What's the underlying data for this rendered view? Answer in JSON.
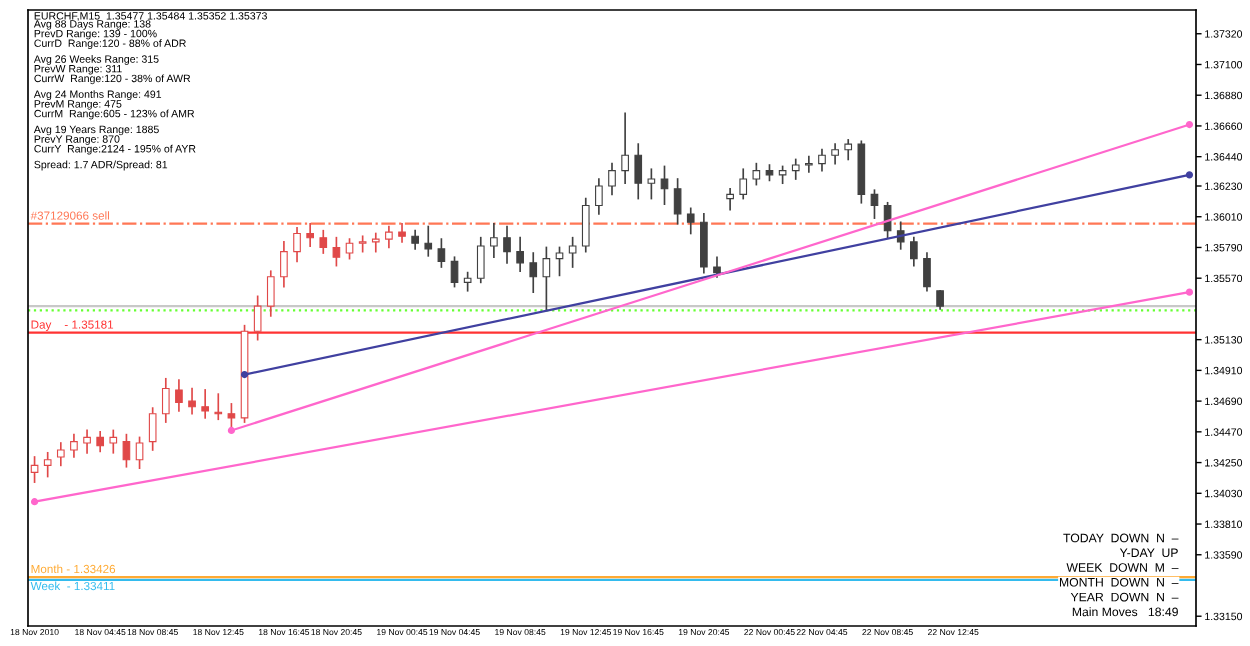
{
  "chart_data": {
    "type": "candlestick",
    "title": "EURCHF,M15  1.35477 1.35484 1.35352 1.35373",
    "categories": [
      "18 Nov 2010",
      null,
      null,
      null,
      null,
      "18 Nov 04:45",
      null,
      null,
      null,
      "18 Nov 08:45",
      null,
      null,
      null,
      null,
      "18 Nov 12:45",
      null,
      null,
      null,
      null,
      "18 Nov 16:45",
      null,
      null,
      null,
      "18 Nov 20:45",
      null,
      null,
      null,
      null,
      "19 Nov 00:45",
      null,
      null,
      null,
      "19 Nov 04:45",
      null,
      null,
      null,
      null,
      "19 Nov 08:45",
      null,
      null,
      null,
      null,
      "19 Nov 12:45",
      null,
      null,
      null,
      "19 Nov 16:45",
      null,
      null,
      null,
      null,
      "19 Nov 20:45",
      null,
      null,
      null,
      null,
      "22 Nov 00:45",
      null,
      null,
      null,
      "22 Nov 04:45",
      null,
      null,
      null,
      null,
      "22 Nov 08:45",
      null,
      null,
      null,
      null,
      "22 Nov 12:45",
      null,
      null,
      null,
      null,
      null,
      null,
      null,
      null,
      null,
      null,
      null,
      null,
      null,
      null,
      null,
      null,
      null,
      null
    ],
    "ylim": [
      1.3308,
      1.3749
    ],
    "yticks": [
      {
        "value": 1.3732,
        "label": "1.37320"
      },
      {
        "value": 1.371,
        "label": "1.37100"
      },
      {
        "value": 1.3688,
        "label": "1.36880"
      },
      {
        "value": 1.3666,
        "label": "1.36660"
      },
      {
        "value": 1.3644,
        "label": "1.36440"
      },
      {
        "value": 1.3623,
        "label": "1.36230"
      },
      {
        "value": 1.3601,
        "label": "1.36010"
      },
      {
        "value": 1.3579,
        "label": "1.35790"
      },
      {
        "value": 1.3557,
        "label": "1.35570"
      },
      {
        "value": 1.3513,
        "label": "1.35130"
      },
      {
        "value": 1.3491,
        "label": "1.34910"
      },
      {
        "value": 1.3469,
        "label": "1.34690"
      },
      {
        "value": 1.3447,
        "label": "1.34470"
      },
      {
        "value": 1.3425,
        "label": "1.34250"
      },
      {
        "value": 1.3403,
        "label": "1.34030"
      },
      {
        "value": 1.3381,
        "label": "1.33810"
      },
      {
        "value": 1.3359,
        "label": "1.33590"
      },
      {
        "value": 1.3315,
        "label": "1.33150"
      }
    ],
    "series": [
      {
        "color": "#e04848",
        "ohlc": [
          [
            1.3418,
            1.3429,
            1.3411,
            1.3423
          ],
          [
            1.3423,
            1.3432,
            1.3415,
            1.3427
          ],
          [
            1.3429,
            1.3439,
            1.3423,
            1.3434
          ],
          [
            1.3434,
            1.3445,
            1.3429,
            1.344
          ],
          [
            1.3439,
            1.3448,
            1.3432,
            1.3443
          ],
          [
            1.3443,
            1.3447,
            1.3433,
            1.3437
          ],
          [
            1.3439,
            1.3448,
            1.3432,
            1.3443
          ],
          [
            1.344,
            1.3445,
            1.3422,
            1.3427
          ],
          [
            1.3427,
            1.3443,
            1.3421,
            1.3439
          ],
          [
            1.344,
            1.3464,
            1.3434,
            1.346
          ],
          [
            1.346,
            1.3485,
            1.3454,
            1.3478
          ],
          [
            1.3477,
            1.3484,
            1.3462,
            1.3468
          ],
          [
            1.3469,
            1.3478,
            1.346,
            1.3465
          ],
          [
            1.3465,
            1.3477,
            1.3457,
            1.3462
          ],
          [
            1.3461,
            1.3474,
            1.3456,
            1.346
          ],
          [
            1.346,
            1.3467,
            1.3448,
            1.3457
          ],
          [
            1.3457,
            1.3523,
            1.3454,
            1.3519
          ],
          [
            1.3519,
            1.3544,
            1.3513,
            1.3537
          ],
          [
            1.3537,
            1.3562,
            1.353,
            1.3558
          ],
          [
            1.3558,
            1.3583,
            1.3551,
            1.3576
          ],
          [
            1.3576,
            1.3593,
            1.3569,
            1.3589
          ],
          [
            1.3589,
            1.3596,
            1.358,
            1.3586
          ],
          [
            1.3586,
            1.3591,
            1.3575,
            1.3579
          ],
          [
            1.3579,
            1.3586,
            1.3566,
            1.3572
          ],
          [
            1.3575,
            1.3585,
            1.3571,
            1.3582
          ],
          [
            1.3582,
            1.3587,
            1.3576,
            1.3583
          ],
          [
            1.3583,
            1.3589,
            1.3576,
            1.3585
          ],
          [
            1.3585,
            1.3594,
            1.3579,
            1.359
          ],
          [
            1.359,
            1.3596,
            1.3583,
            1.3587
          ],
          null,
          null,
          null,
          null,
          null,
          null,
          null,
          null,
          null,
          null,
          null,
          null,
          null,
          null,
          null,
          null,
          null,
          null,
          null,
          null,
          null,
          null,
          null,
          null,
          null,
          null,
          null,
          null,
          null,
          null,
          null,
          null,
          null,
          null,
          null,
          null,
          null,
          null,
          null,
          null,
          null,
          null,
          null,
          null,
          null,
          null,
          null,
          null,
          null,
          null,
          null,
          null,
          null,
          null,
          null,
          null,
          null,
          null,
          null,
          null
        ]
      },
      {
        "color": "#404040",
        "ohlc": [
          null,
          null,
          null,
          null,
          null,
          null,
          null,
          null,
          null,
          null,
          null,
          null,
          null,
          null,
          null,
          null,
          null,
          null,
          null,
          null,
          null,
          null,
          null,
          null,
          null,
          null,
          null,
          null,
          null,
          [
            1.3587,
            1.3591,
            1.3578,
            1.3582
          ],
          [
            1.3582,
            1.3594,
            1.3573,
            1.3578
          ],
          [
            1.3578,
            1.3585,
            1.3565,
            1.3569
          ],
          [
            1.3569,
            1.3572,
            1.3551,
            1.3554
          ],
          [
            1.3554,
            1.3561,
            1.3548,
            1.3557
          ],
          [
            1.3557,
            1.3586,
            1.3554,
            1.358
          ],
          [
            1.358,
            1.3596,
            1.3572,
            1.3586
          ],
          [
            1.3586,
            1.3594,
            1.3568,
            1.3576
          ],
          [
            1.3576,
            1.3586,
            1.3562,
            1.3568
          ],
          [
            1.3568,
            1.3575,
            1.3547,
            1.3558
          ],
          [
            1.3558,
            1.3579,
            1.3534,
            1.3571
          ],
          [
            1.3571,
            1.3579,
            1.3559,
            1.3575
          ],
          [
            1.3575,
            1.3586,
            1.3565,
            1.358
          ],
          [
            1.358,
            1.3614,
            1.3576,
            1.3609
          ],
          [
            1.3609,
            1.3628,
            1.3603,
            1.3623
          ],
          [
            1.3623,
            1.3639,
            1.3617,
            1.3634
          ],
          [
            1.3634,
            1.3675,
            1.3625,
            1.3645
          ],
          [
            1.3645,
            1.3653,
            1.3614,
            1.3625
          ],
          [
            1.3625,
            1.3635,
            1.3614,
            1.3628
          ],
          [
            1.3628,
            1.3637,
            1.361,
            1.3621
          ],
          [
            1.3621,
            1.3628,
            1.3596,
            1.3603
          ],
          [
            1.3603,
            1.3607,
            1.3589,
            1.3597
          ],
          [
            1.3597,
            1.3603,
            1.3561,
            1.3565
          ],
          [
            1.3565,
            1.3572,
            1.3558,
            1.3561
          ],
          [
            1.3614,
            1.3621,
            1.3606,
            1.3617
          ],
          [
            1.3617,
            1.3635,
            1.3614,
            1.3628
          ],
          [
            1.3628,
            1.3639,
            1.3624,
            1.3634
          ],
          [
            1.3634,
            1.3638,
            1.3627,
            1.3631
          ],
          [
            1.3631,
            1.3637,
            1.3625,
            1.3634
          ],
          [
            1.3634,
            1.3642,
            1.3628,
            1.3638
          ],
          [
            1.3638,
            1.3644,
            1.3633,
            1.3639
          ],
          [
            1.3639,
            1.3649,
            1.3634,
            1.3645
          ],
          [
            1.3645,
            1.3653,
            1.3639,
            1.3649
          ],
          [
            1.3649,
            1.3656,
            1.3642,
            1.3653
          ],
          [
            1.3653,
            1.3655,
            1.3611,
            1.3617
          ],
          [
            1.3617,
            1.362,
            1.36,
            1.3609
          ],
          [
            1.3609,
            1.3611,
            1.3586,
            1.3591
          ],
          [
            1.3591,
            1.3597,
            1.3578,
            1.3583
          ],
          [
            1.3583,
            1.3586,
            1.3566,
            1.3571
          ],
          [
            1.3571,
            1.3575,
            1.3548,
            1.3551
          ],
          [
            1.3548,
            1.3548,
            1.3535,
            1.3537
          ],
          null,
          null,
          null,
          null,
          null,
          null,
          null,
          null,
          null,
          null,
          null,
          null,
          null,
          null,
          null,
          null,
          null,
          null,
          null
        ]
      },
      {
        "type": "line",
        "color": "#4040a0",
        "marker": "circle",
        "values": [
          null,
          null,
          null,
          null,
          null,
          null,
          null,
          null,
          null,
          null,
          null,
          null,
          null,
          null,
          null,
          null,
          1.3488,
          null,
          null,
          null,
          null,
          null,
          null,
          null,
          null,
          null,
          null,
          null,
          null,
          null,
          null,
          null,
          null,
          null,
          null,
          null,
          null,
          null,
          null,
          null,
          null,
          null,
          null,
          null,
          null,
          null,
          null,
          null,
          null,
          null,
          null,
          null,
          null,
          null,
          null,
          null,
          null,
          null,
          null,
          null,
          null,
          null,
          null,
          null,
          null,
          null,
          null,
          null,
          null,
          null,
          null,
          null,
          null,
          null,
          null,
          null,
          null,
          null,
          null,
          null,
          null,
          null,
          null,
          null,
          null,
          null,
          null,
          null,
          1.3631
        ]
      },
      {
        "type": "line",
        "color": "#ff66cc",
        "marker": "circle",
        "values": [
          null,
          null,
          null,
          null,
          null,
          null,
          null,
          null,
          null,
          null,
          null,
          null,
          null,
          null,
          null,
          1.3448,
          null,
          null,
          null,
          null,
          null,
          null,
          null,
          null,
          null,
          null,
          null,
          null,
          null,
          null,
          null,
          null,
          null,
          null,
          null,
          null,
          null,
          null,
          null,
          null,
          null,
          null,
          null,
          null,
          null,
          null,
          null,
          null,
          null,
          null,
          null,
          null,
          null,
          null,
          null,
          null,
          null,
          null,
          null,
          null,
          null,
          null,
          null,
          null,
          null,
          null,
          null,
          null,
          null,
          null,
          null,
          null,
          null,
          null,
          null,
          null,
          null,
          null,
          null,
          null,
          null,
          null,
          null,
          null,
          null,
          null,
          null,
          null,
          1.3667
        ]
      },
      {
        "type": "line",
        "color": "#ff66cc",
        "marker": "circle",
        "values": [
          1.3397,
          null,
          null,
          null,
          null,
          null,
          null,
          null,
          null,
          null,
          null,
          null,
          null,
          null,
          null,
          null,
          null,
          null,
          null,
          null,
          null,
          null,
          null,
          null,
          null,
          null,
          null,
          null,
          null,
          null,
          null,
          null,
          null,
          null,
          null,
          null,
          null,
          null,
          null,
          null,
          null,
          null,
          null,
          null,
          null,
          null,
          null,
          null,
          null,
          null,
          null,
          null,
          null,
          null,
          null,
          null,
          null,
          null,
          null,
          null,
          null,
          null,
          null,
          null,
          null,
          null,
          null,
          null,
          null,
          null,
          null,
          null,
          null,
          null,
          null,
          null,
          null,
          null,
          null,
          null,
          null,
          null,
          null,
          null,
          null,
          null,
          null,
          null,
          1.3547
        ]
      }
    ],
    "ref_lines": [
      {
        "axis": "y",
        "value": 1.3596,
        "label": "#37129066 sell",
        "color": "#ff7755",
        "line_style": "dashdot"
      },
      {
        "axis": "y",
        "value": 1.3537,
        "color": "#c8c8c8",
        "line_style": "solid"
      },
      {
        "axis": "y",
        "value": 1.3534,
        "color": "#66ff33",
        "line_style": "dotted"
      },
      {
        "axis": "y",
        "value": 1.3518,
        "label": "Day    - 1.35181",
        "color": "#ff3333",
        "line_style": "solid"
      },
      {
        "axis": "y",
        "value": 1.3341,
        "label": "Week  - 1.33411",
        "color": "#33bbee",
        "line_style": "solid"
      },
      {
        "axis": "y",
        "value": 1.3343,
        "label": "Month - 1.33426",
        "color": "#ffaa33",
        "line_style": "solid"
      }
    ],
    "annotations": [
      "Avg 88 Days Range: 138",
      "PrevD Range: 139 - 100%",
      "CurrD  Range:120 - 88% of ADR",
      "Avg 26 Weeks Range: 315",
      "PrevW Range: 311",
      "CurrW  Range:120 - 38% of AWR",
      "Avg 24 Months Range: 491",
      "PrevM Range: 475",
      "CurrM  Range:605 - 123% of AMR",
      "Avg 19 Years Range: 1885",
      "PrevY Range: 870",
      "CurrY  Range:2124 - 195% of AYR",
      "Spread: 1.7 ADR/Spread: 81",
      "TODAY  DOWN  N  –",
      "Y-DAY  UP",
      "WEEK  DOWN  M  –",
      "MONTH  DOWN  N  –",
      "YEAR  DOWN  N  –",
      "Main Moves   18:49"
    ]
  }
}
